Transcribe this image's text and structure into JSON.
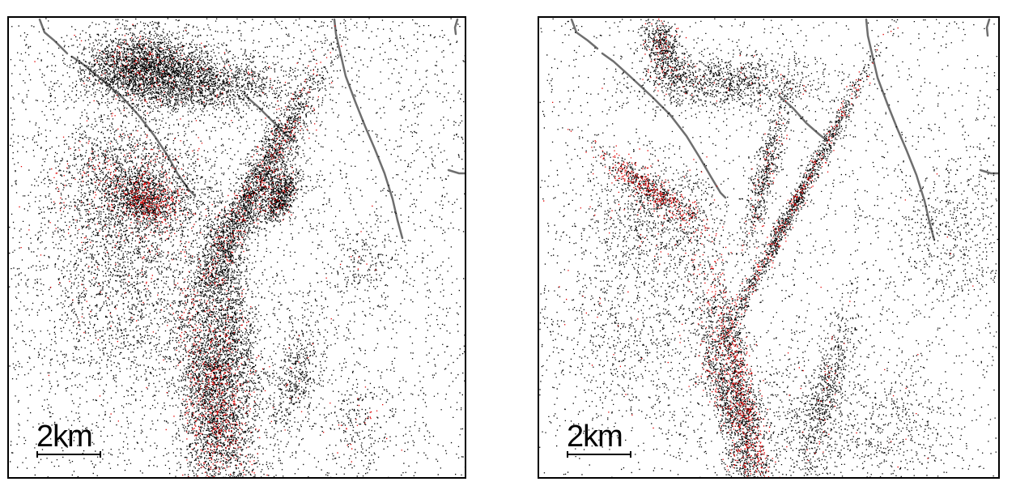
{
  "panels": [
    {
      "id": "left",
      "scalebar": {
        "label": "2km"
      },
      "point_colors": {
        "background_events": "#000000",
        "highlight_events": "#e00000"
      },
      "fault_color": "#6e6e6e"
    },
    {
      "id": "right",
      "scalebar": {
        "label": "2km"
      },
      "point_colors": {
        "background_events": "#000000",
        "highlight_events": "#e00000"
      },
      "fault_color": "#6e6e6e"
    }
  ]
}
